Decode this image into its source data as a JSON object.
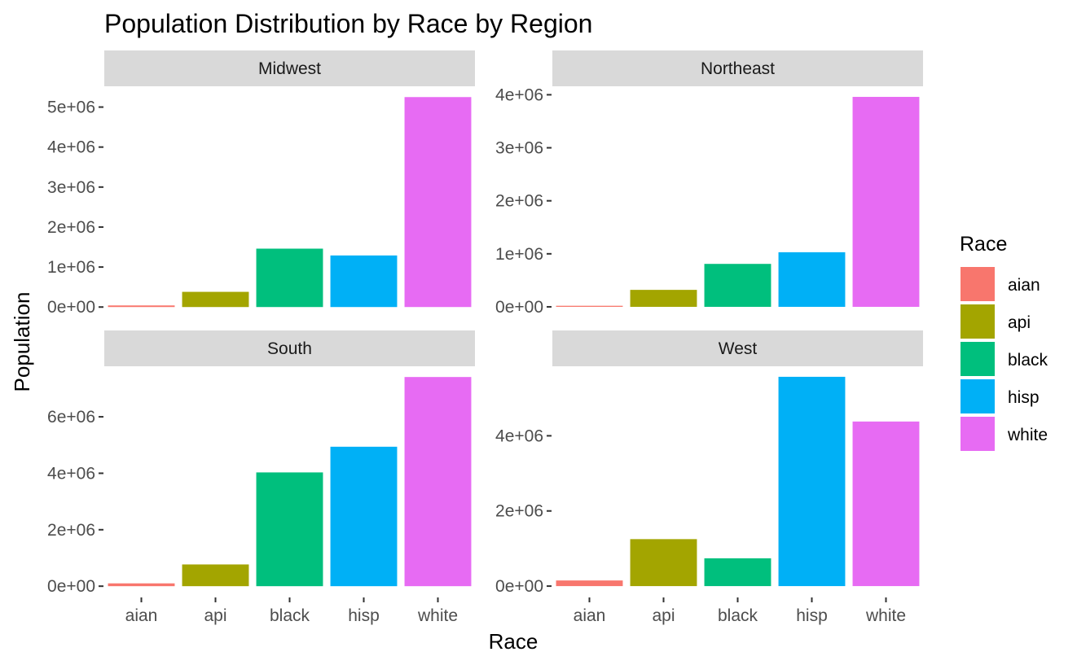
{
  "chart_data": {
    "type": "bar",
    "title": "Population Distribution by Race by Region",
    "xlabel": "Race",
    "ylabel": "Population",
    "categories": [
      "aian",
      "api",
      "black",
      "hisp",
      "white"
    ],
    "colors": [
      "#F8766D",
      "#A3A500",
      "#00BF7D",
      "#00B0F6",
      "#E76BF3"
    ],
    "legend": {
      "title": "Race",
      "position": "right",
      "entries": [
        "aian",
        "api",
        "black",
        "hisp",
        "white"
      ]
    },
    "grid": false,
    "facets": [
      {
        "name": "Midwest",
        "values": [
          40000,
          380000,
          1460000,
          1290000,
          5250000
        ],
        "ylim": [
          -260000,
          5520000
        ],
        "yticks": [
          0,
          1000000,
          2000000,
          3000000,
          4000000,
          5000000
        ],
        "ytick_labels": [
          "0e+00",
          "1e+06",
          "2e+06",
          "3e+06",
          "4e+06",
          "5e+06"
        ]
      },
      {
        "name": "Northeast",
        "values": [
          20000,
          320000,
          810000,
          1030000,
          3960000
        ],
        "ylim": [
          -200000,
          4160000
        ],
        "yticks": [
          0,
          1000000,
          2000000,
          3000000,
          4000000
        ],
        "ytick_labels": [
          "0e+00",
          "1e+06",
          "2e+06",
          "3e+06",
          "4e+06"
        ]
      },
      {
        "name": "South",
        "values": [
          100000,
          770000,
          4030000,
          4940000,
          7410000
        ],
        "ylim": [
          -370000,
          7790000
        ],
        "yticks": [
          0,
          2000000,
          4000000,
          6000000
        ],
        "ytick_labels": [
          "0e+00",
          "2e+06",
          "4e+06",
          "6e+06"
        ]
      },
      {
        "name": "West",
        "values": [
          150000,
          1250000,
          740000,
          5570000,
          4380000
        ],
        "ylim": [
          -280000,
          5850000
        ],
        "yticks": [
          0,
          2000000,
          4000000
        ],
        "ytick_labels": [
          "0e+00",
          "2e+06",
          "4e+06"
        ]
      }
    ]
  }
}
